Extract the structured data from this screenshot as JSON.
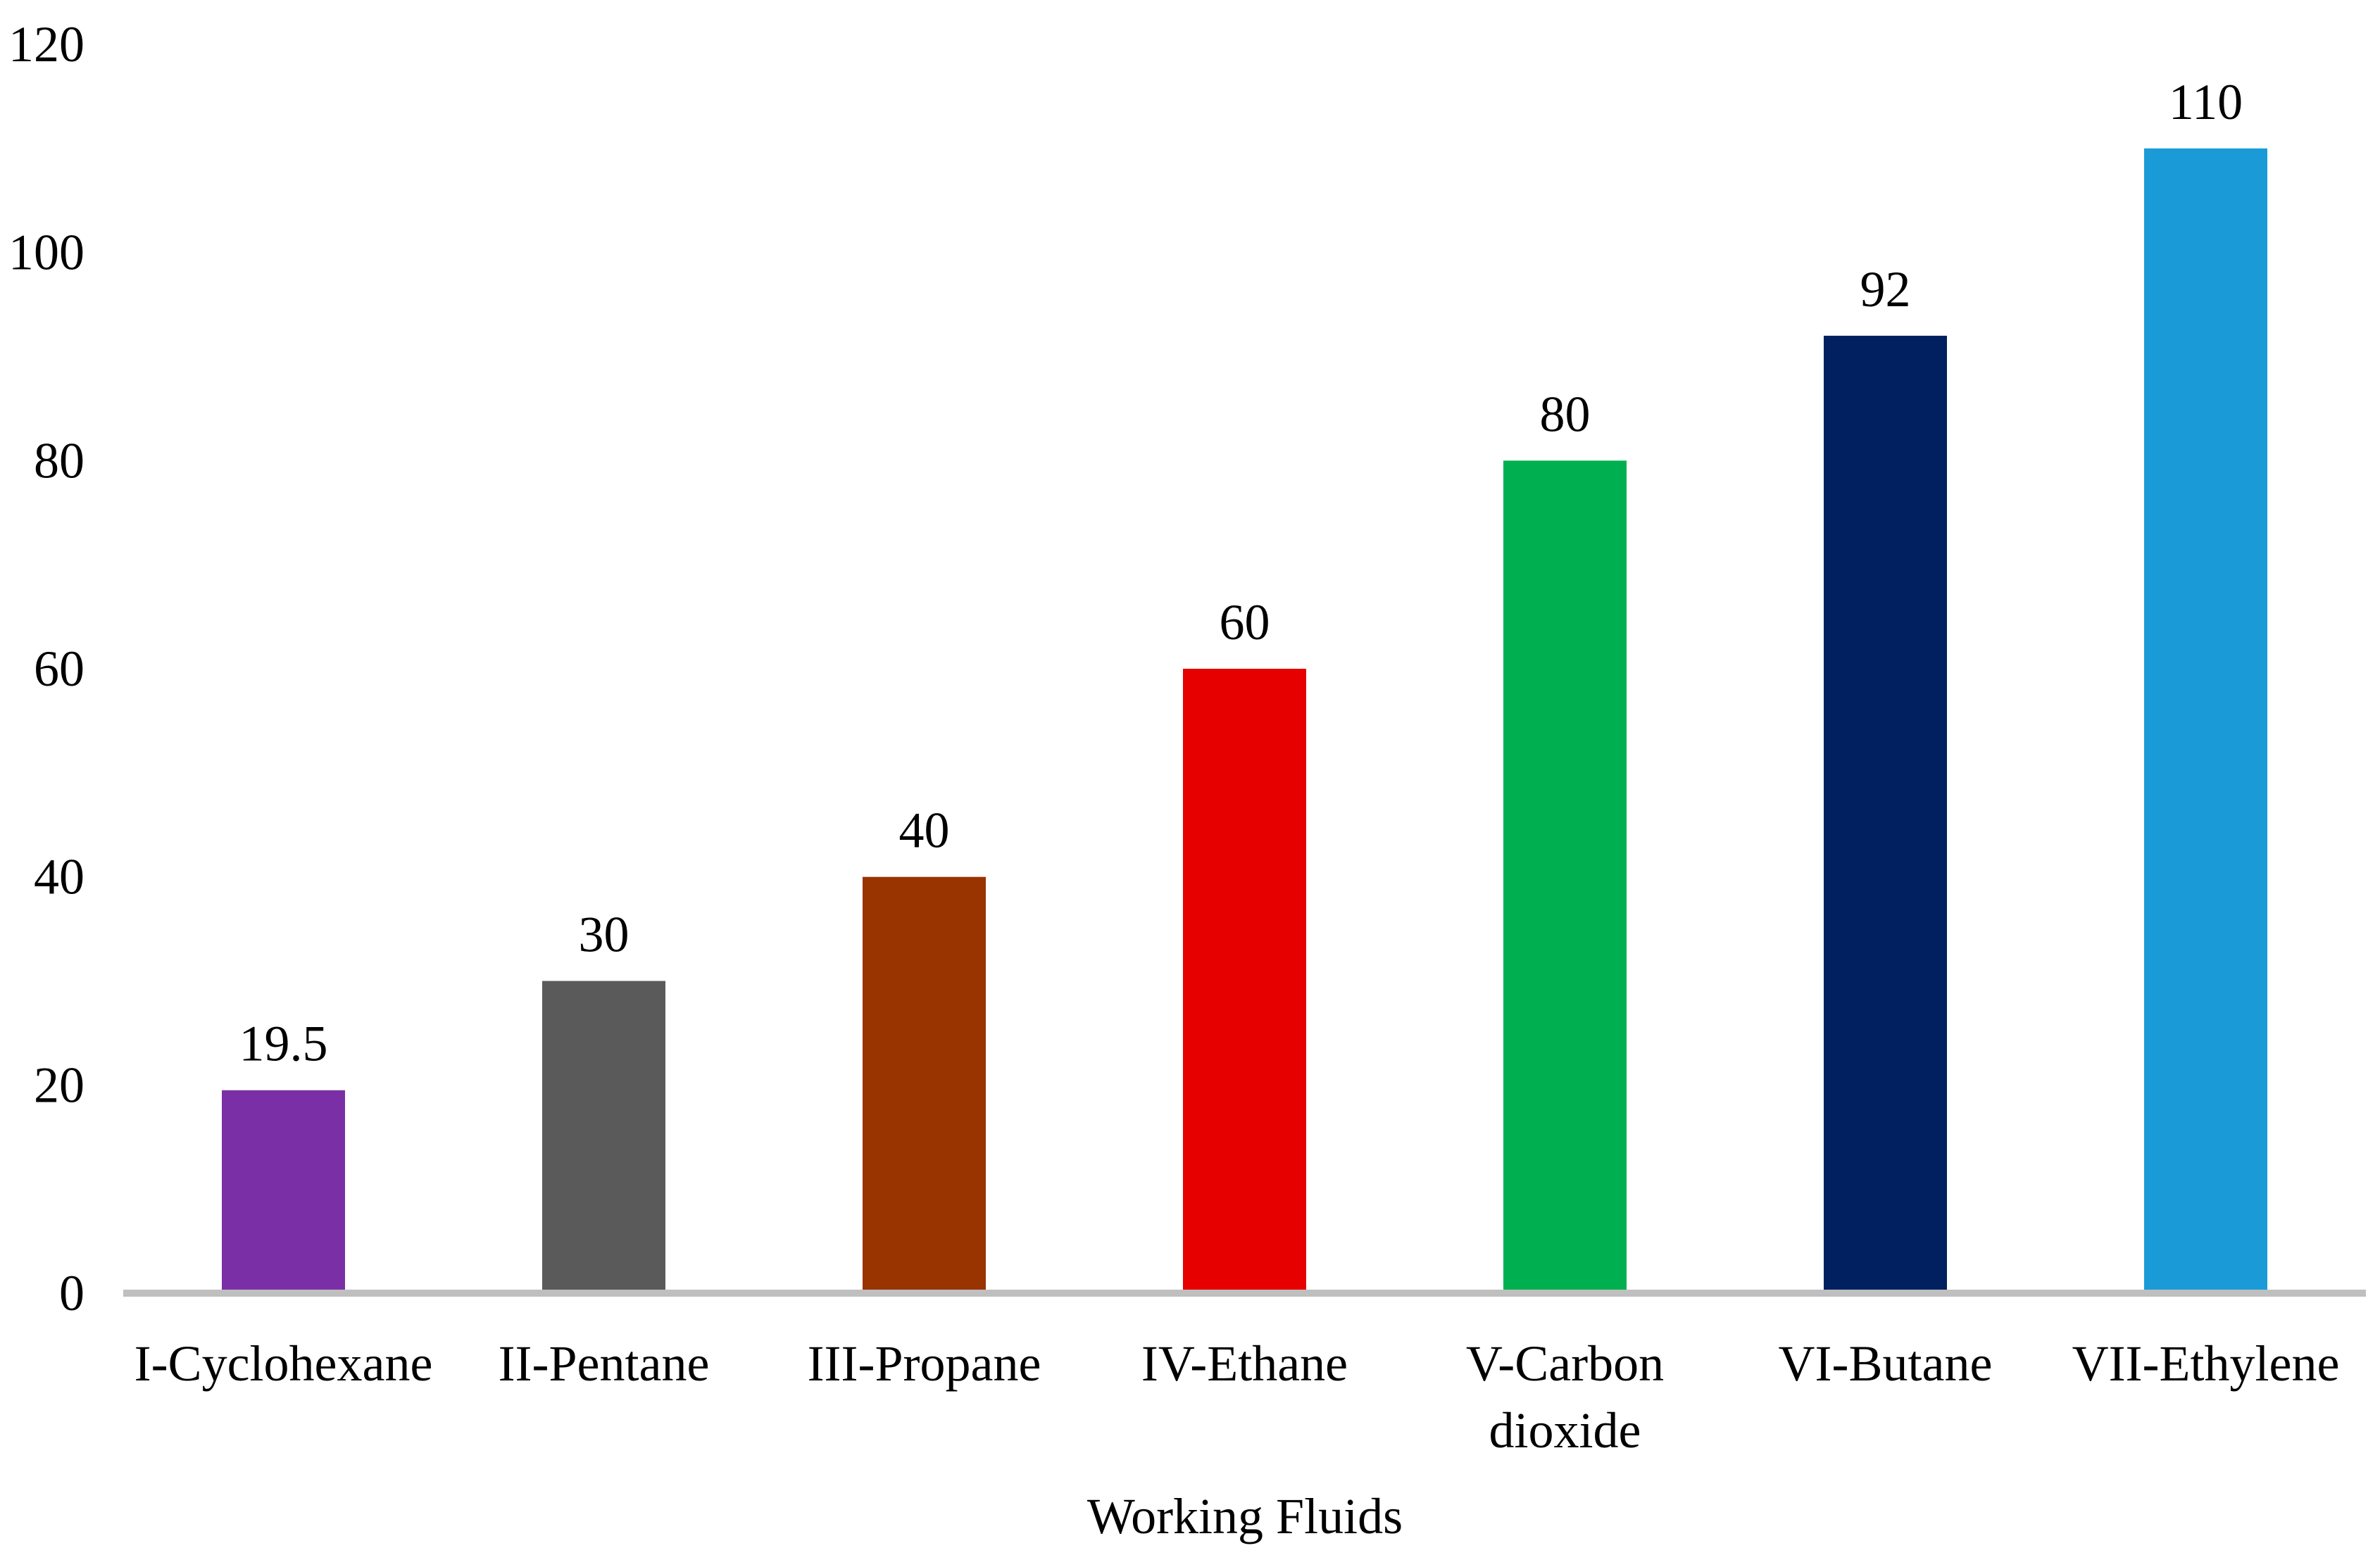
{
  "chart_data": {
    "type": "bar",
    "title": "",
    "xlabel": "Working Fluids",
    "ylabel": "",
    "ylim": [
      0,
      120
    ],
    "yticks": [
      0,
      20,
      40,
      60,
      80,
      100,
      120
    ],
    "grid": false,
    "legend": "none",
    "categories": [
      [
        "I-Cyclohexane"
      ],
      [
        "II-Pentane"
      ],
      [
        "III-Propane"
      ],
      [
        "IV-Ethane"
      ],
      [
        "V-Carbon",
        "dioxide"
      ],
      [
        "VI-Butane"
      ],
      [
        "VII-Ethylene"
      ]
    ],
    "values": [
      19.5,
      30,
      40,
      60,
      80,
      92,
      110
    ],
    "value_labels": [
      "19.5",
      "30",
      "40",
      "60",
      "80",
      "92",
      "110"
    ],
    "colors": [
      "#7b2fa6",
      "#5a5a5a",
      "#993300",
      "#e60000",
      "#00b050",
      "#002060",
      "#1a9bd7"
    ],
    "axis_color": "#bfbfbf"
  }
}
